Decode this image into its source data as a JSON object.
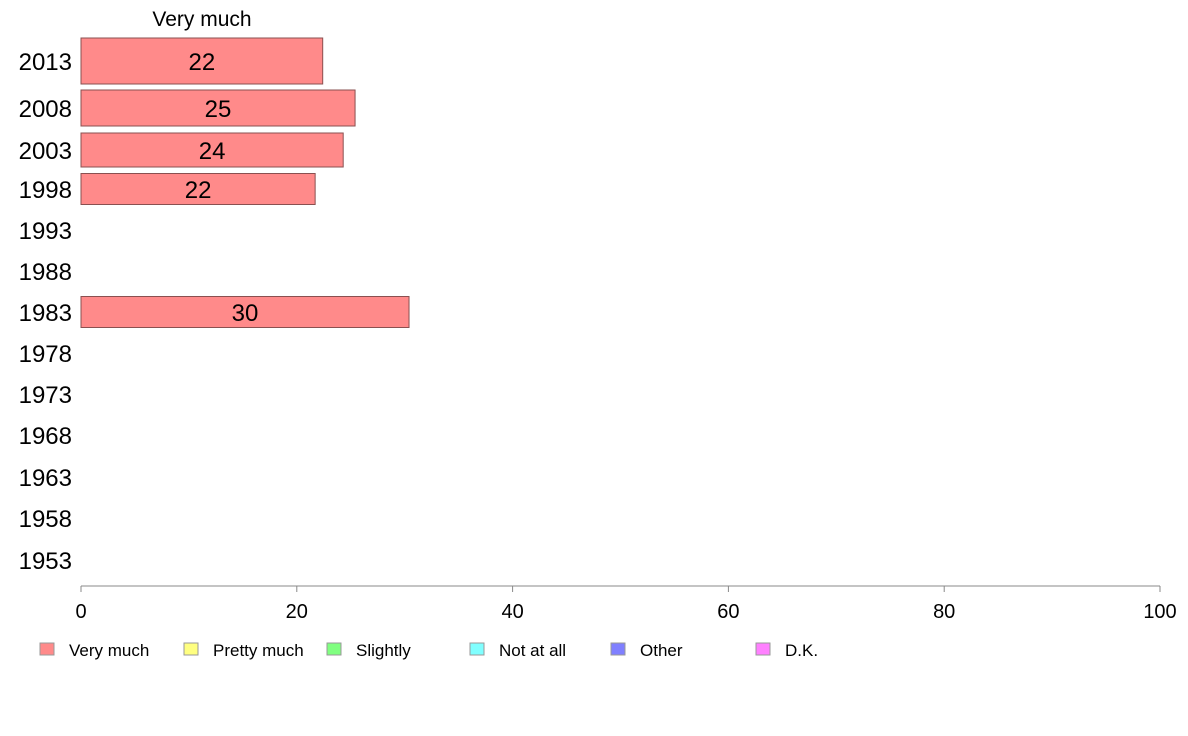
{
  "chart_data": {
    "type": "bar",
    "orientation": "horizontal",
    "column_header": "Very much",
    "categories": [
      "2013",
      "2008",
      "2003",
      "1998",
      "1993",
      "1988",
      "1983",
      "1978",
      "1973",
      "1968",
      "1963",
      "1958",
      "1953"
    ],
    "series": [
      {
        "name": "Very much",
        "color": "#ff8a8a",
        "values": [
          22.4,
          25.4,
          24.3,
          21.7,
          null,
          null,
          30.4,
          null,
          null,
          null,
          null,
          null,
          null
        ],
        "labels": [
          "22",
          "25",
          "24",
          "22",
          "",
          "",
          "30",
          "",
          "",
          "",
          "",
          "",
          ""
        ]
      }
    ],
    "xlim": [
      0,
      100
    ],
    "xticks": [
      0,
      20,
      40,
      60,
      80,
      100
    ],
    "grid": false,
    "legend_position": "bottom",
    "legend": [
      {
        "label": "Very much",
        "color": "#ff8a8a"
      },
      {
        "label": "Pretty much",
        "color": "#ffff80"
      },
      {
        "label": "Slightly",
        "color": "#80ff80"
      },
      {
        "label": "Not at all",
        "color": "#80ffff"
      },
      {
        "label": "Other",
        "color": "#8080ff"
      },
      {
        "label": "D.K.",
        "color": "#ff80ff"
      }
    ]
  }
}
